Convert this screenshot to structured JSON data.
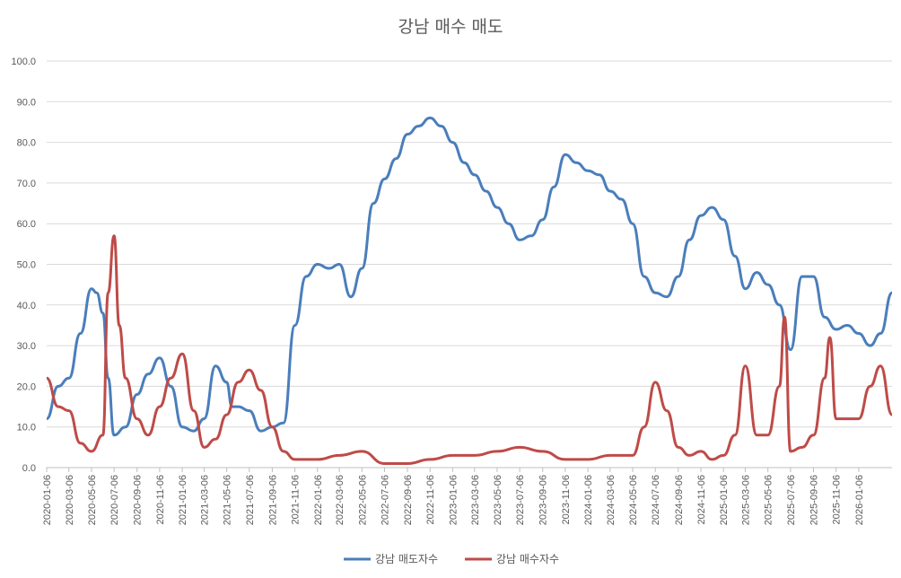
{
  "chart_data": {
    "type": "line",
    "title": "강남 매수 매도",
    "ylim": [
      0,
      100
    ],
    "yticks": [
      "0.0",
      "10.0",
      "20.0",
      "30.0",
      "40.0",
      "50.0",
      "60.0",
      "70.0",
      "80.0",
      "90.0",
      "100.0"
    ],
    "x_start": "2020-01-06",
    "x_end": "2026-04-06",
    "xticks": [
      "2020-01-06",
      "2020-03-06",
      "2020-05-06",
      "2020-07-06",
      "2020-09-06",
      "2020-11-06",
      "2021-01-06",
      "2021-03-06",
      "2021-05-06",
      "2021-07-06",
      "2021-09-06",
      "2021-11-06",
      "2022-01-06",
      "2022-03-06",
      "2022-05-06",
      "2022-07-06",
      "2022-09-06",
      "2022-11-06",
      "2023-01-06",
      "2023-03-06",
      "2023-05-06",
      "2023-07-06",
      "2023-09-06",
      "2023-11-06",
      "2024-01-06",
      "2024-03-06",
      "2024-05-06",
      "2024-07-06",
      "2024-09-06",
      "2024-11-06",
      "2025-01-06",
      "2025-03-06",
      "2025-05-06",
      "2025-07-06",
      "2025-09-06",
      "2025-11-06",
      "2026-01-06"
    ],
    "grid": true,
    "legend": "bottom",
    "series": [
      {
        "name": "강남 매도자수",
        "color": "#4a7ebb",
        "x": [
          "2020-01-06",
          "2020-02-06",
          "2020-03-06",
          "2020-04-06",
          "2020-05-06",
          "2020-05-20",
          "2020-06-06",
          "2020-06-20",
          "2020-07-06",
          "2020-08-06",
          "2020-09-06",
          "2020-10-06",
          "2020-11-06",
          "2020-12-06",
          "2021-01-06",
          "2021-02-06",
          "2021-03-06",
          "2021-04-06",
          "2021-05-06",
          "2021-05-20",
          "2021-06-06",
          "2021-07-06",
          "2021-08-06",
          "2021-09-06",
          "2021-10-06",
          "2021-11-06",
          "2021-12-06",
          "2022-01-06",
          "2022-02-06",
          "2022-03-06",
          "2022-04-06",
          "2022-05-06",
          "2022-06-06",
          "2022-07-06",
          "2022-08-06",
          "2022-09-06",
          "2022-10-06",
          "2022-11-06",
          "2022-12-06",
          "2023-01-06",
          "2023-02-06",
          "2023-03-06",
          "2023-04-06",
          "2023-05-06",
          "2023-06-06",
          "2023-07-06",
          "2023-08-06",
          "2023-09-06",
          "2023-10-06",
          "2023-11-06",
          "2023-12-06",
          "2024-01-06",
          "2024-02-06",
          "2024-03-06",
          "2024-04-06",
          "2024-05-06",
          "2024-06-06",
          "2024-07-06",
          "2024-08-06",
          "2024-09-06",
          "2024-10-06",
          "2024-11-06",
          "2024-12-06",
          "2025-01-06",
          "2025-02-06",
          "2025-03-06",
          "2025-04-06",
          "2025-05-06",
          "2025-06-06",
          "2025-07-06",
          "2025-08-06",
          "2025-09-06",
          "2025-10-06",
          "2025-11-06",
          "2025-12-06",
          "2026-01-06",
          "2026-02-06",
          "2026-03-06",
          "2026-04-06"
        ],
        "values": [
          12,
          20,
          22,
          33,
          44,
          43,
          38,
          22,
          8,
          10,
          18,
          23,
          27,
          20,
          10,
          9,
          12,
          25,
          21,
          15,
          15,
          14,
          9,
          10,
          11,
          35,
          47,
          50,
          49,
          50,
          42,
          49,
          65,
          71,
          76,
          82,
          84,
          86,
          84,
          80,
          75,
          72,
          68,
          64,
          60,
          56,
          57,
          61,
          69,
          77,
          75,
          73,
          72,
          68,
          66,
          60,
          47,
          43,
          42,
          47,
          56,
          62,
          64,
          61,
          52,
          44,
          48,
          45,
          40,
          29,
          47,
          47,
          37,
          34,
          35,
          33,
          30,
          33,
          43
        ]
      },
      {
        "name": "강남 매수자수",
        "color": "#be4b48",
        "x": [
          "2020-01-06",
          "2020-02-06",
          "2020-03-06",
          "2020-04-06",
          "2020-05-06",
          "2020-06-06",
          "2020-06-20",
          "2020-07-06",
          "2020-07-20",
          "2020-08-06",
          "2020-09-06",
          "2020-10-06",
          "2020-11-06",
          "2020-12-06",
          "2021-01-06",
          "2021-02-06",
          "2021-03-06",
          "2021-04-06",
          "2021-05-06",
          "2021-06-06",
          "2021-07-06",
          "2021-08-06",
          "2021-09-06",
          "2021-10-06",
          "2021-11-06",
          "2021-12-06",
          "2022-01-06",
          "2022-03-06",
          "2022-05-06",
          "2022-07-06",
          "2022-09-06",
          "2022-11-06",
          "2023-01-06",
          "2023-03-06",
          "2023-05-06",
          "2023-07-06",
          "2023-09-06",
          "2023-11-06",
          "2024-01-06",
          "2024-03-06",
          "2024-05-06",
          "2024-06-06",
          "2024-07-06",
          "2024-08-06",
          "2024-09-06",
          "2024-10-06",
          "2024-11-06",
          "2024-12-06",
          "2025-01-06",
          "2025-02-06",
          "2025-03-06",
          "2025-04-06",
          "2025-05-06",
          "2025-06-06",
          "2025-06-20",
          "2025-07-06",
          "2025-08-06",
          "2025-09-06",
          "2025-10-06",
          "2025-10-20",
          "2025-11-06",
          "2025-12-06",
          "2026-01-06",
          "2026-02-06",
          "2026-03-06",
          "2026-04-06"
        ],
        "values": [
          22,
          15,
          14,
          6,
          4,
          8,
          43,
          57,
          35,
          22,
          12,
          8,
          15,
          22,
          28,
          14,
          5,
          7,
          13,
          21,
          24,
          19,
          10,
          4,
          2,
          2,
          2,
          3,
          4,
          1,
          1,
          2,
          3,
          3,
          4,
          5,
          4,
          2,
          2,
          3,
          3,
          10,
          21,
          14,
          5,
          3,
          4,
          2,
          3,
          8,
          25,
          8,
          8,
          20,
          37,
          4,
          5,
          8,
          22,
          32,
          12,
          12,
          12,
          20,
          25,
          13
        ]
      }
    ]
  }
}
